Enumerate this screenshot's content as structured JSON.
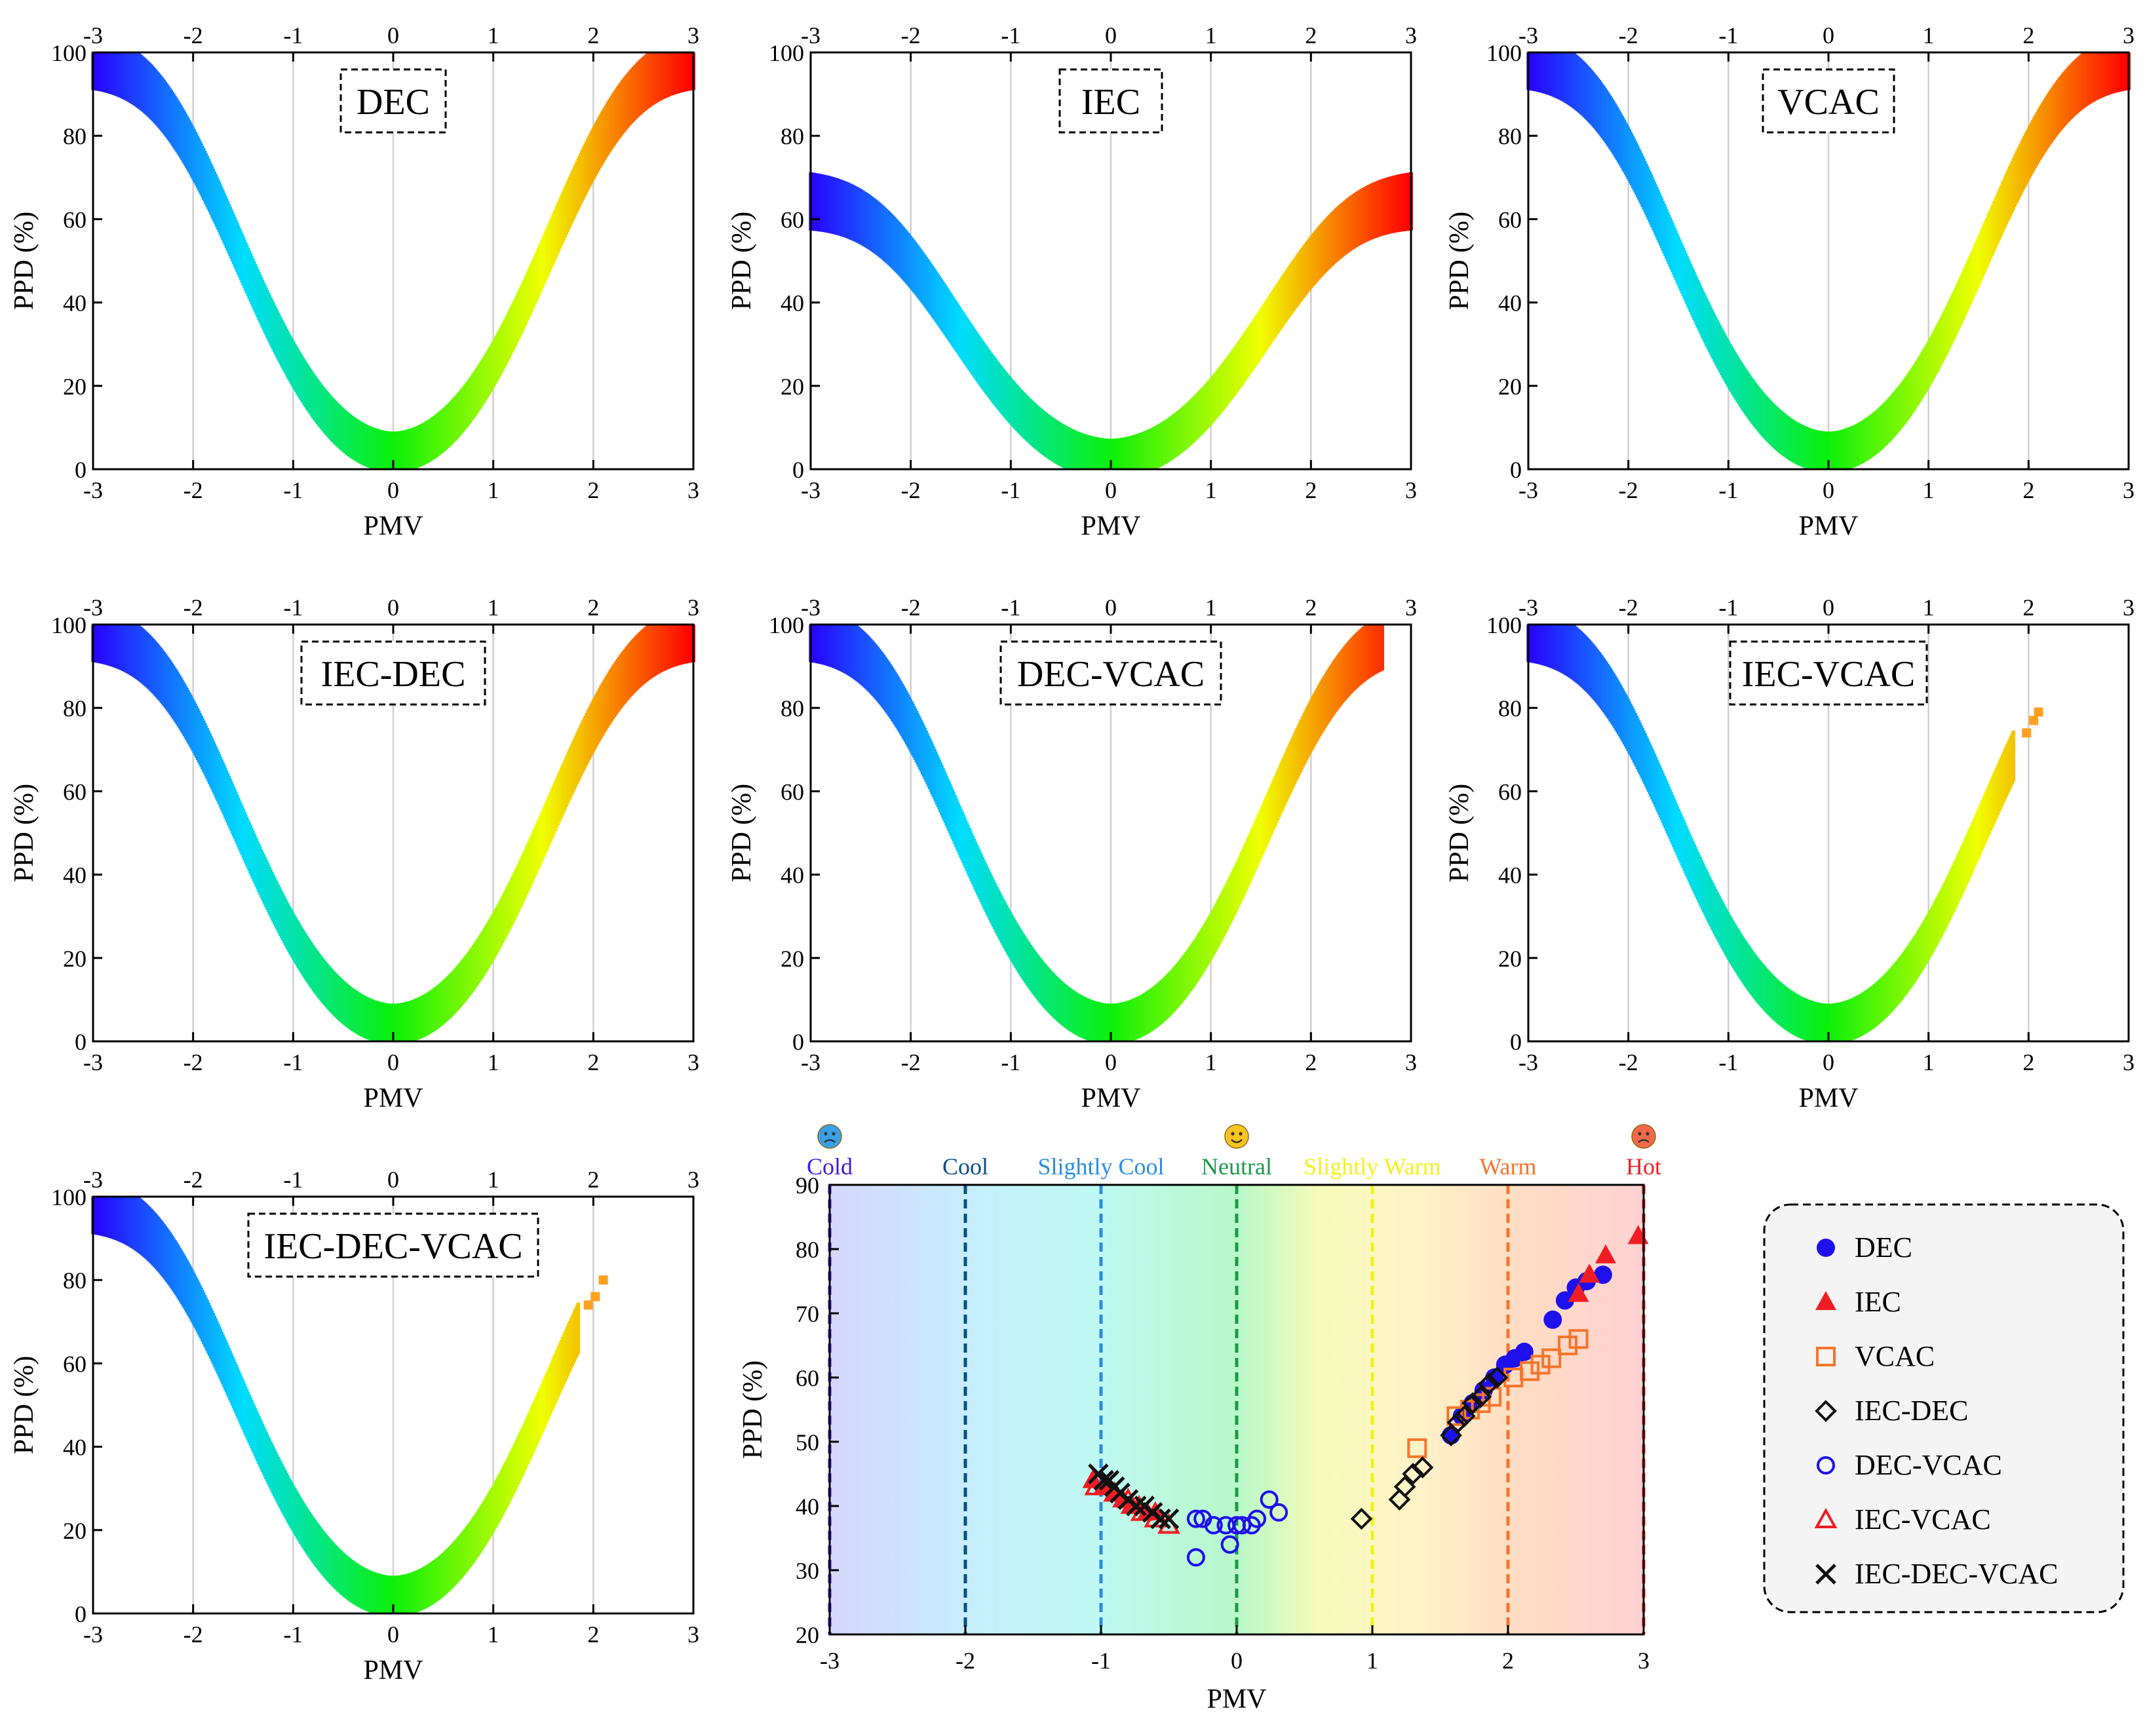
{
  "figure": {
    "pmv_ticks": [
      "-3",
      "-2",
      "-1",
      "0",
      "1",
      "2",
      "3"
    ],
    "ppd_ticks": [
      "0",
      "20",
      "40",
      "60",
      "80",
      "100"
    ],
    "xlabel": "PMV",
    "ylabel": "PPD (%)"
  },
  "chart_data": [
    {
      "type": "scatter",
      "title": "DEC",
      "xlabel": "PMV",
      "ylabel": "PPD (%)",
      "xlim": [
        -3,
        3
      ],
      "ylim": [
        0,
        100
      ],
      "pmv_min": -3.0,
      "pmv_max": 3.0,
      "spread": 0.1,
      "grid": "vertical"
    },
    {
      "type": "scatter",
      "title": "IEC",
      "xlabel": "PMV",
      "ylabel": "PPD (%)",
      "xlim": [
        -3,
        3
      ],
      "ylim": [
        0,
        100
      ],
      "pmv_min": -3.0,
      "pmv_max": 3.0,
      "spread": 0.1,
      "scale": 0.66,
      "grid": "vertical"
    },
    {
      "type": "scatter",
      "title": "VCAC",
      "xlabel": "PMV",
      "ylabel": "PPD (%)",
      "xlim": [
        -3,
        3
      ],
      "ylim": [
        0,
        100
      ],
      "pmv_min": -3.0,
      "pmv_max": 3.0,
      "spread": 0.1,
      "grid": "vertical"
    },
    {
      "type": "scatter",
      "title": "IEC-DEC",
      "xlabel": "PMV",
      "ylabel": "PPD (%)",
      "xlim": [
        -3,
        3
      ],
      "ylim": [
        0,
        100
      ],
      "pmv_min": -3.0,
      "pmv_max": 3.0,
      "spread": 0.1,
      "grid": "vertical"
    },
    {
      "type": "scatter",
      "title": "DEC-VCAC",
      "xlabel": "PMV",
      "ylabel": "PPD (%)",
      "xlim": [
        -3,
        3
      ],
      "ylim": [
        0,
        100
      ],
      "pmv_min": -3.0,
      "pmv_max": 2.72,
      "spread": 0.08,
      "grid": "vertical"
    },
    {
      "type": "scatter",
      "title": "IEC-VCAC",
      "xlabel": "PMV",
      "ylabel": "PPD (%)",
      "xlim": [
        -3,
        3
      ],
      "ylim": [
        0,
        100
      ],
      "pmv_min": -3.0,
      "pmv_max": 1.85,
      "spread": 0.07,
      "grid": "vertical",
      "outliers": [
        {
          "x": 1.98,
          "y": 74
        },
        {
          "x": 2.05,
          "y": 77
        },
        {
          "x": 2.1,
          "y": 79
        }
      ]
    },
    {
      "type": "scatter",
      "title": "IEC-DEC-VCAC",
      "xlabel": "PMV",
      "ylabel": "PPD (%)",
      "xlim": [
        -3,
        3
      ],
      "ylim": [
        0,
        100
      ],
      "pmv_min": -3.0,
      "pmv_max": 1.85,
      "spread": 0.07,
      "grid": "vertical",
      "outliers": [
        {
          "x": 1.95,
          "y": 74
        },
        {
          "x": 2.02,
          "y": 76
        },
        {
          "x": 2.1,
          "y": 80
        }
      ]
    },
    {
      "type": "scatter",
      "title": "",
      "xlabel": "PMV",
      "ylabel": "PPD (%)",
      "xlim": [
        -3,
        3
      ],
      "ylim": [
        20,
        90
      ],
      "x_ticks": [
        "-3",
        "-2",
        "-1",
        "0",
        "1",
        "2",
        "3"
      ],
      "y_ticks": [
        "20",
        "30",
        "40",
        "50",
        "60",
        "70",
        "80",
        "90"
      ],
      "legend_placement": "right",
      "zones": [
        {
          "label": "Cold",
          "x": -3,
          "color": "#3b1ee0",
          "icon": "cold-emoji-icon"
        },
        {
          "label": "Cool",
          "x": -2,
          "color": "#0a4f86"
        },
        {
          "label": "Slightly Cool",
          "x": -1,
          "color": "#2b8de0"
        },
        {
          "label": "Neutral",
          "x": 0,
          "color": "#1a9a4a",
          "icon": "smile-emoji-icon"
        },
        {
          "label": "Slightly Warm",
          "x": 1,
          "color": "#f2f21a"
        },
        {
          "label": "Warm",
          "x": 2,
          "color": "#f5752a"
        },
        {
          "label": "Hot",
          "x": 3,
          "color": "#f01e24",
          "icon": "angry-emoji-icon"
        }
      ],
      "series": [
        {
          "name": "DEC",
          "marker": "circle-filled",
          "color": "#1f10ee",
          "x": [
            1.58,
            1.66,
            1.74,
            1.82,
            1.9,
            1.98,
            2.05,
            2.12,
            2.33,
            2.42,
            2.5,
            2.58,
            2.7
          ],
          "y": [
            51,
            54,
            56,
            58,
            60,
            62,
            63,
            64,
            69,
            72,
            74,
            75,
            76
          ]
        },
        {
          "name": "IEC",
          "marker": "triangle-filled",
          "color": "#f01e24",
          "x": [
            -1.06,
            -0.98,
            -0.9,
            -0.84,
            -0.78,
            -0.72,
            -0.66,
            -0.6,
            2.52,
            2.6,
            2.72,
            2.96
          ],
          "y": [
            44,
            43,
            42,
            41,
            40,
            40,
            39,
            39,
            73,
            76,
            79,
            82
          ]
        },
        {
          "name": "VCAC",
          "marker": "square-open",
          "color": "#f5752a",
          "x": [
            1.33,
            1.62,
            1.72,
            1.8,
            1.88,
            2.04,
            2.16,
            2.24,
            2.32,
            2.44,
            2.52
          ],
          "y": [
            49,
            54,
            55,
            56,
            57,
            60,
            61,
            62,
            63,
            65,
            66
          ]
        },
        {
          "name": "IEC-DEC",
          "marker": "diamond-open",
          "color": "#111111",
          "x": [
            0.92,
            1.2,
            1.24,
            1.3,
            1.37,
            1.58,
            1.63,
            1.68,
            1.74,
            1.8,
            1.86,
            1.92
          ],
          "y": [
            38,
            41,
            43,
            45,
            46,
            51,
            53,
            54,
            56,
            57,
            59,
            60
          ]
        },
        {
          "name": "DEC-VCAC",
          "marker": "circle-open",
          "color": "#1f10ee",
          "x": [
            -0.3,
            -0.25,
            -0.17,
            -0.08,
            0.0,
            0.04,
            0.11,
            0.15,
            0.24,
            0.31,
            -0.3,
            -0.05
          ],
          "y": [
            38,
            38,
            37,
            37,
            37,
            37,
            37,
            38,
            41,
            39,
            32,
            34
          ]
        },
        {
          "name": "IEC-VCAC",
          "marker": "triangle-open",
          "color": "#f01e24",
          "x": [
            -1.04,
            -0.9,
            -0.8,
            -0.7,
            -0.6,
            -0.5
          ],
          "y": [
            43,
            42,
            41,
            39,
            38,
            37
          ]
        },
        {
          "name": "IEC-DEC-VCAC",
          "marker": "cross",
          "color": "#111111",
          "x": [
            -1.02,
            -0.98,
            -0.94,
            -0.9,
            -0.86,
            -0.8,
            -0.74,
            -0.68,
            -0.62,
            -0.56,
            -0.5
          ],
          "y": [
            45,
            44,
            44,
            43,
            42,
            41,
            40,
            40,
            39,
            38,
            38
          ]
        }
      ]
    }
  ]
}
